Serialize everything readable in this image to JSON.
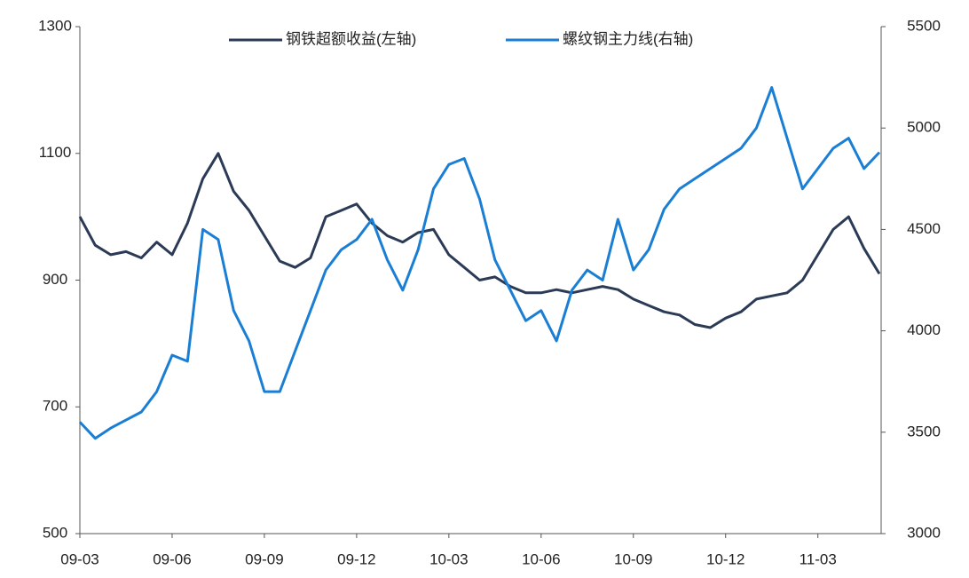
{
  "chart_data": {
    "type": "line",
    "categories": [
      "09-03",
      null,
      null,
      null,
      null,
      null,
      "09-06",
      null,
      null,
      null,
      null,
      null,
      "09-09",
      null,
      null,
      null,
      null,
      null,
      "09-12",
      null,
      null,
      null,
      null,
      null,
      "10-03",
      null,
      null,
      null,
      null,
      null,
      "10-06",
      null,
      null,
      null,
      null,
      null,
      "10-09",
      null,
      null,
      null,
      null,
      null,
      "10-12",
      null,
      null,
      null,
      null,
      null,
      "11-03",
      null,
      null,
      null,
      null
    ],
    "series": [
      {
        "name": "钢铁超额收益(左轴)",
        "color": "#2b3a55",
        "axis": "y",
        "values": [
          1000,
          955,
          940,
          945,
          935,
          960,
          940,
          990,
          1060,
          1100,
          1040,
          1010,
          970,
          930,
          920,
          935,
          1000,
          1010,
          1020,
          990,
          970,
          960,
          975,
          980,
          940,
          920,
          900,
          905,
          890,
          880,
          880,
          885,
          880,
          885,
          890,
          885,
          870,
          860,
          850,
          845,
          830,
          825,
          840,
          850,
          870,
          875,
          880,
          900,
          940,
          980,
          1000,
          950,
          910
        ]
      },
      {
        "name": "螺纹钢主力线(右轴)",
        "color": "#1a7fd4",
        "axis": "y2",
        "values": [
          3550,
          3470,
          3520,
          3560,
          3600,
          3700,
          3880,
          3850,
          4500,
          4450,
          4100,
          3950,
          3700,
          3700,
          3900,
          4100,
          4300,
          4400,
          4450,
          4550,
          4350,
          4200,
          4400,
          4700,
          4820,
          4850,
          4650,
          4350,
          4200,
          4050,
          4100,
          3950,
          4200,
          4300,
          4250,
          4550,
          4300,
          4400,
          4600,
          4700,
          4750,
          4800,
          4850,
          4900,
          5000,
          5200,
          4950,
          4700,
          4800,
          4900,
          4950,
          4800,
          4880
        ]
      }
    ],
    "ylim": [
      500,
      1300
    ],
    "yticks": [
      500,
      700,
      900,
      1100,
      1300
    ],
    "y2lim": [
      3000,
      5500
    ],
    "y2ticks": [
      3000,
      3500,
      4000,
      4500,
      5000,
      5500
    ]
  }
}
